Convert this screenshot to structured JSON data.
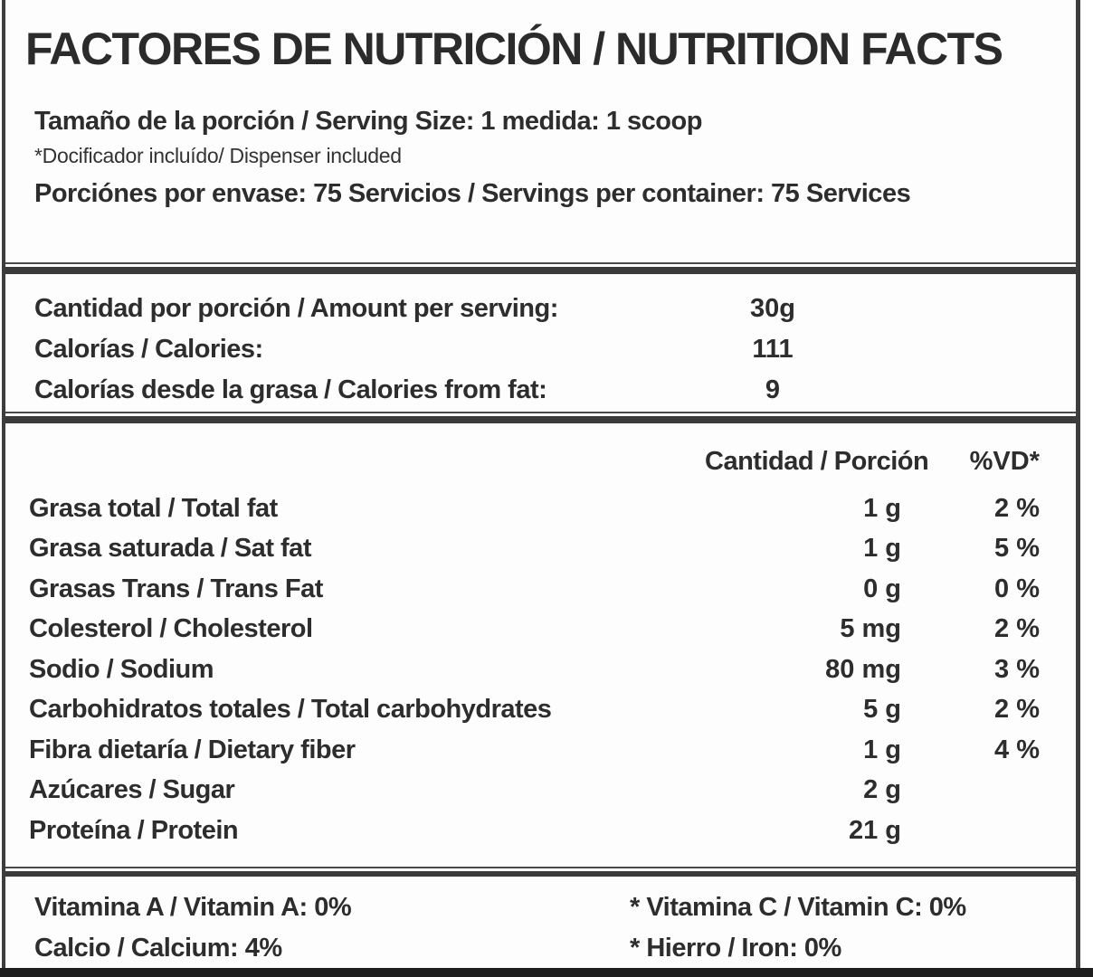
{
  "label": {
    "title": "FACTORES DE NUTRICIÓN / NUTRITION FACTS",
    "serving_info": {
      "serving_size_line": "Tamaño de la porción / Serving Size: 1 medida: 1 scoop",
      "dispenser_note": "*Docificador incluído/ Dispenser included",
      "servings_per_container_line": "Porciónes por envase: 75 Servicios / Servings per container: 75 Services"
    },
    "per_serving": {
      "rows": [
        {
          "label": "Cantidad por porción / Amount per serving:",
          "value": "30g"
        },
        {
          "label": "Calorías / Calories:",
          "value": "111"
        },
        {
          "label": "Calorías desde la grasa / Calories from fat:",
          "value": "9"
        }
      ]
    },
    "nutrients": {
      "columns": {
        "amount": "Cantidad / Porción",
        "daily_value": "%VD*"
      },
      "rows": [
        {
          "label": "Grasa total / Total fat",
          "amount": "1 g",
          "dv": "2 %"
        },
        {
          "label": "Grasa saturada / Sat fat",
          "amount": "1 g",
          "dv": "5 %"
        },
        {
          "label": "Grasas Trans / Trans Fat",
          "amount": "0 g",
          "dv": "0 %"
        },
        {
          "label": "Colesterol / Cholesterol",
          "amount": "5 mg",
          "dv": "2 %"
        },
        {
          "label": "Sodio / Sodium",
          "amount": "80 mg",
          "dv": "3 %"
        },
        {
          "label": "Carbohidratos totales / Total carbohydrates",
          "amount": "5 g",
          "dv": "2 %"
        },
        {
          "label": "Fibra dietaría / Dietary fiber",
          "amount": "1 g",
          "dv": "4 %"
        },
        {
          "label": "Azúcares / Sugar",
          "amount": "2 g",
          "dv": ""
        },
        {
          "label": "Proteína / Protein",
          "amount": "21 g",
          "dv": ""
        }
      ]
    },
    "vitamins": {
      "rows": [
        {
          "left": "Vitamina A / Vitamin A: 0%",
          "right": "* Vitamina C / Vitamin C: 0%"
        },
        {
          "left": "Calcio / Calcium: 4%",
          "right": "* Hierro / Iron: 0%"
        }
      ]
    },
    "colors": {
      "text": "#2d2d2d",
      "border": "#3d3d3d",
      "divider": "#3a3a3a",
      "background": "#fdfdfd",
      "bottom_bar": "#1e1e1e"
    }
  }
}
